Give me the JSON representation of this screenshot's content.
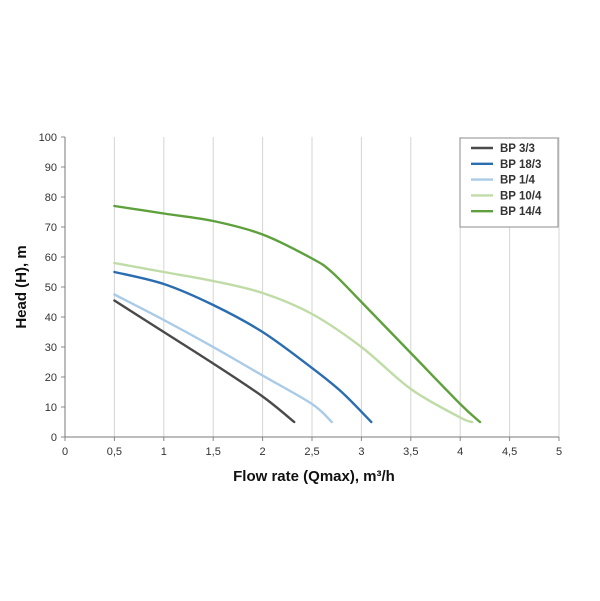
{
  "chart_data": {
    "type": "line",
    "xlabel": "Flow rate (Qmax), m³/h",
    "ylabel": "Head (H), m",
    "xlim": [
      0,
      5
    ],
    "ylim": [
      0,
      100
    ],
    "x_ticks": [
      "0",
      "0,5",
      "1",
      "1,5",
      "2",
      "2,5",
      "3",
      "3,5",
      "4",
      "4,5",
      "5"
    ],
    "y_ticks": [
      "0",
      "10",
      "20",
      "30",
      "40",
      "50",
      "60",
      "70",
      "80",
      "90",
      "100"
    ],
    "grid": "vertical",
    "legend_position": "top-right",
    "series": [
      {
        "name": "BP 3/3",
        "color": "#4a4a4a",
        "x": [
          0.5,
          1.0,
          1.5,
          2.0,
          2.32
        ],
        "y": [
          45.5,
          35,
          24.5,
          13.5,
          5
        ]
      },
      {
        "name": "BP 18/3",
        "color": "#2a6db0",
        "x": [
          0.5,
          1.0,
          1.5,
          2.0,
          2.5,
          2.8,
          3.1
        ],
        "y": [
          55,
          51,
          44,
          35,
          23,
          15,
          5
        ]
      },
      {
        "name": "BP 1/4",
        "color": "#a9cbe8",
        "x": [
          0.5,
          1.0,
          1.5,
          2.0,
          2.5,
          2.7
        ],
        "y": [
          47.5,
          39,
          30,
          20.5,
          11,
          5
        ]
      },
      {
        "name": "BP 10/4",
        "color": "#bfdca6",
        "x": [
          0.5,
          1.0,
          1.5,
          2.0,
          2.5,
          3.0,
          3.5,
          4.0,
          4.12
        ],
        "y": [
          58,
          55,
          52,
          48,
          41,
          30,
          16,
          6.5,
          5
        ]
      },
      {
        "name": "BP 14/4",
        "color": "#5ea13c",
        "x": [
          0.5,
          1.0,
          1.5,
          2.0,
          2.5,
          2.7,
          3.0,
          3.5,
          4.0,
          4.2
        ],
        "y": [
          77,
          74.5,
          72,
          67.5,
          59.5,
          55,
          45,
          28,
          11,
          5
        ]
      }
    ]
  }
}
